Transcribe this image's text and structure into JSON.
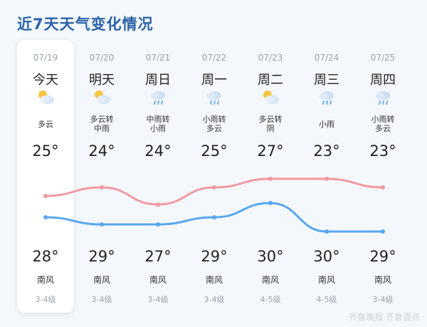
{
  "title": "近7天天气变化情况",
  "days": [
    {
      "date": "07/19",
      "day": "今天",
      "icon": "partly-cloudy-icon",
      "desc": [
        "多云"
      ],
      "high": "25°",
      "low": "28°",
      "wind": "南风",
      "level": "3-4级"
    },
    {
      "date": "07/20",
      "day": "明天",
      "icon": "partly-cloudy-icon",
      "desc": [
        "多云转",
        "中雨"
      ],
      "high": "24°",
      "low": "29°",
      "wind": "南风",
      "level": "3-4级"
    },
    {
      "date": "07/21",
      "day": "周日",
      "icon": "rain-cloud-icon",
      "desc": [
        "中雨转",
        "小雨"
      ],
      "high": "24°",
      "low": "27°",
      "wind": "南风",
      "level": "3-4级"
    },
    {
      "date": "07/22",
      "day": "周一",
      "icon": "rain-cloud-icon",
      "desc": [
        "小雨转",
        "多云"
      ],
      "high": "25°",
      "low": "29°",
      "wind": "南风",
      "level": "3-4级"
    },
    {
      "date": "07/23",
      "day": "周二",
      "icon": "partly-cloudy-icon",
      "desc": [
        "多云转",
        "阴"
      ],
      "high": "27°",
      "low": "30°",
      "wind": "南风",
      "level": "4-5级"
    },
    {
      "date": "07/24",
      "day": "周三",
      "icon": "rain-cloud-icon",
      "desc": [
        "小雨"
      ],
      "high": "23°",
      "low": "30°",
      "wind": "南风",
      "level": "4-5级"
    },
    {
      "date": "07/25",
      "day": "周四",
      "icon": "rain-cloud-icon",
      "desc": [
        "小雨转",
        "多云"
      ],
      "high": "23°",
      "low": "29°",
      "wind": "南风",
      "level": "3-4级"
    }
  ],
  "chart_data": {
    "type": "line",
    "categories": [
      "07/19",
      "07/20",
      "07/21",
      "07/22",
      "07/23",
      "07/24",
      "07/25"
    ],
    "series": [
      {
        "values": [
          25,
          24,
          24,
          25,
          27,
          23,
          23
        ],
        "color": "#58a6ee"
      },
      {
        "values": [
          28,
          29,
          27,
          29,
          30,
          30,
          29
        ],
        "color": "#f09aa0"
      }
    ],
    "ylim": [
      22,
      31
    ]
  },
  "colors": {
    "accent": "#2a62a8",
    "high_line": "#58a6ee",
    "low_line": "#f09aa0"
  },
  "watermark": "齐鲁晚报 齐鲁壹点"
}
